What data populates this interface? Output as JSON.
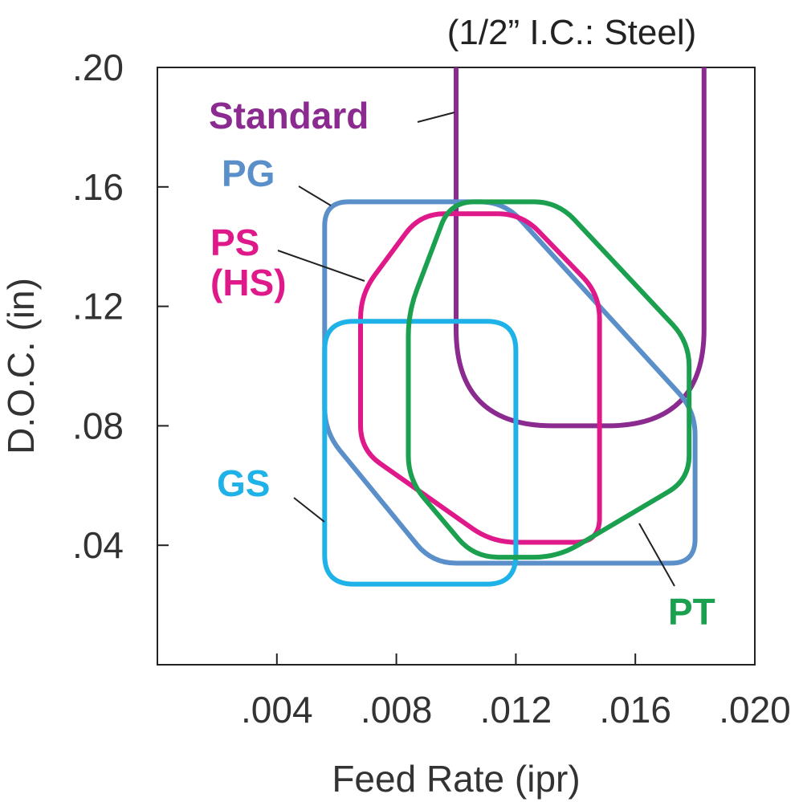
{
  "chart_data": {
    "type": "area",
    "title": "(1/2” I.C.: Steel)",
    "xlabel": "Feed Rate (ipr)",
    "ylabel": "D.O.C. (in)",
    "xlim": [
      0,
      0.02
    ],
    "ylim": [
      0,
      0.2
    ],
    "x_ticks": [
      ".004",
      ".008",
      ".012",
      ".016",
      ".020"
    ],
    "y_ticks": [
      ".04",
      ".08",
      ".12",
      ".16",
      ".20"
    ],
    "grid": false,
    "series": [
      {
        "name": "Standard",
        "color": "#8b2a8f",
        "x_range": [
          0.01,
          0.0183
        ],
        "y_range": [
          0.08,
          0.2
        ],
        "open_top": true,
        "corner_radius": [
          0.0017,
          0.017
        ]
      },
      {
        "name": "PG",
        "color": "#5b8fc9",
        "polygon": [
          [
            0.0056,
            0.155
          ],
          [
            0.0116,
            0.155
          ],
          [
            0.018,
            0.085
          ],
          [
            0.018,
            0.034
          ],
          [
            0.0092,
            0.034
          ],
          [
            0.0056,
            0.078
          ]
        ]
      },
      {
        "name": "PS\n(HS)",
        "color": "#e0198a",
        "polygon": [
          [
            0.0088,
            0.151
          ],
          [
            0.0122,
            0.151
          ],
          [
            0.0148,
            0.124
          ],
          [
            0.0148,
            0.041
          ],
          [
            0.0112,
            0.041
          ],
          [
            0.0068,
            0.072
          ],
          [
            0.0068,
            0.124
          ]
        ]
      },
      {
        "name": "GS",
        "color": "#1fb2e8",
        "x_range": [
          0.0056,
          0.012
        ],
        "y_range": [
          0.027,
          0.115
        ],
        "corner_radius": [
          0.0012,
          0.012
        ]
      },
      {
        "name": "PT",
        "color": "#1aa04e",
        "polygon": [
          [
            0.0098,
            0.155
          ],
          [
            0.0134,
            0.155
          ],
          [
            0.0178,
            0.108
          ],
          [
            0.0178,
            0.062
          ],
          [
            0.0134,
            0.036
          ],
          [
            0.0106,
            0.036
          ],
          [
            0.0084,
            0.062
          ],
          [
            0.0084,
            0.118
          ]
        ]
      }
    ]
  }
}
